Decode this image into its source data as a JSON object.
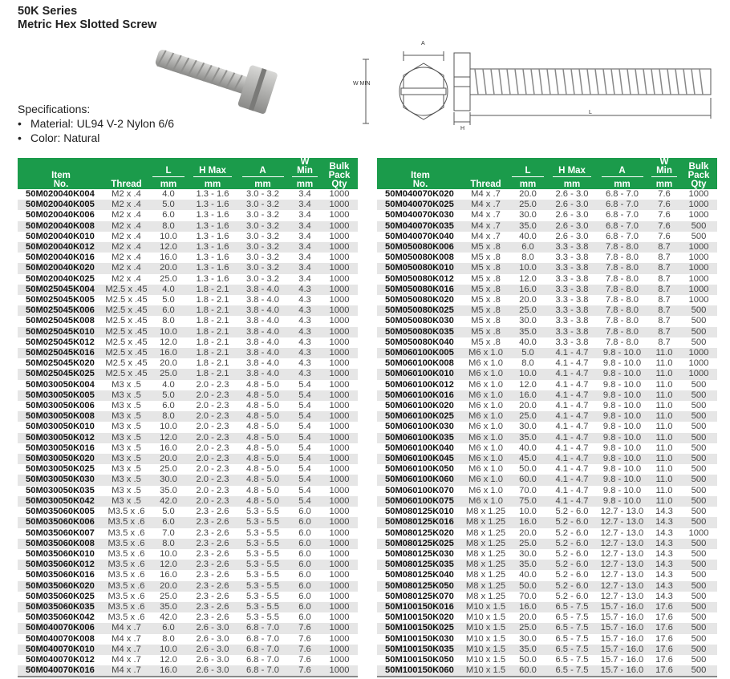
{
  "header": {
    "series": "50K Series",
    "product": "Metric Hex Slotted Screw"
  },
  "specs": {
    "heading": "Specifications:",
    "items": [
      "Material: UL94 V-2 Nylon 6/6",
      "Color: Natural"
    ]
  },
  "diagram": {
    "labels": {
      "a": "A",
      "w": "W MIN",
      "h": "H",
      "l": "L"
    }
  },
  "columns": {
    "item": [
      "Item",
      "No."
    ],
    "thread": "Thread",
    "l": "L",
    "h": "H Max",
    "a": "A",
    "w": "W Min",
    "unit": "mm",
    "qty": [
      "Bulk",
      "Pack",
      "Qty"
    ]
  },
  "colors": {
    "header_green": "#1b9b4b",
    "row_alt": "#e6e6e6"
  },
  "tables": [
    [
      [
        "50M020040K004",
        "M2 x .4",
        "4.0",
        "1.3 - 1.6",
        "3.0 - 3.2",
        "3.4",
        "1000"
      ],
      [
        "50M020040K005",
        "M2 x .4",
        "5.0",
        "1.3 - 1.6",
        "3.0 - 3.2",
        "3.4",
        "1000"
      ],
      [
        "50M020040K006",
        "M2 x .4",
        "6.0",
        "1.3 - 1.6",
        "3.0 - 3.2",
        "3.4",
        "1000"
      ],
      [
        "50M020040K008",
        "M2 x .4",
        "8.0",
        "1.3 - 1.6",
        "3.0 - 3.2",
        "3.4",
        "1000"
      ],
      [
        "50M020040K010",
        "M2 x .4",
        "10.0",
        "1.3 - 1.6",
        "3.0 - 3.2",
        "3.4",
        "1000"
      ],
      [
        "50M020040K012",
        "M2 x .4",
        "12.0",
        "1.3 - 1.6",
        "3.0 - 3.2",
        "3.4",
        "1000"
      ],
      [
        "50M020040K016",
        "M2 x .4",
        "16.0",
        "1.3 - 1.6",
        "3.0 - 3.2",
        "3.4",
        "1000"
      ],
      [
        "50M020040K020",
        "M2 x .4",
        "20.0",
        "1.3 - 1.6",
        "3.0 - 3.2",
        "3.4",
        "1000"
      ],
      [
        "50M020040K025",
        "M2 x .4",
        "25.0",
        "1.3 - 1.6",
        "3.0 - 3.2",
        "3.4",
        "1000"
      ],
      [
        "50M025045K004",
        "M2.5 x .45",
        "4.0",
        "1.8 - 2.1",
        "3.8 - 4.0",
        "4.3",
        "1000"
      ],
      [
        "50M025045K005",
        "M2.5 x .45",
        "5.0",
        "1.8 - 2.1",
        "3.8 - 4.0",
        "4.3",
        "1000"
      ],
      [
        "50M025045K006",
        "M2.5 x .45",
        "6.0",
        "1.8 - 2.1",
        "3.8 - 4.0",
        "4.3",
        "1000"
      ],
      [
        "50M025045K008",
        "M2.5 x .45",
        "8.0",
        "1.8 - 2.1",
        "3.8 - 4.0",
        "4.3",
        "1000"
      ],
      [
        "50M025045K010",
        "M2.5 x .45",
        "10.0",
        "1.8 - 2.1",
        "3.8 - 4.0",
        "4.3",
        "1000"
      ],
      [
        "50M025045K012",
        "M2.5 x .45",
        "12.0",
        "1.8 - 2.1",
        "3.8 - 4.0",
        "4.3",
        "1000"
      ],
      [
        "50M025045K016",
        "M2.5 x .45",
        "16.0",
        "1.8 - 2.1",
        "3.8 - 4.0",
        "4.3",
        "1000"
      ],
      [
        "50M025045K020",
        "M2.5 x .45",
        "20.0",
        "1.8 - 2.1",
        "3.8 - 4.0",
        "4.3",
        "1000"
      ],
      [
        "50M025045K025",
        "M2.5 x .45",
        "25.0",
        "1.8 - 2.1",
        "3.8 - 4.0",
        "4.3",
        "1000"
      ],
      [
        "50M030050K004",
        "M3 x .5",
        "4.0",
        "2.0 - 2.3",
        "4.8 - 5.0",
        "5.4",
        "1000"
      ],
      [
        "50M030050K005",
        "M3 x .5",
        "5.0",
        "2.0 - 2.3",
        "4.8 - 5.0",
        "5.4",
        "1000"
      ],
      [
        "50M030050K006",
        "M3 x .5",
        "6.0",
        "2.0 - 2.3",
        "4.8 - 5.0",
        "5.4",
        "1000"
      ],
      [
        "50M030050K008",
        "M3 x .5",
        "8.0",
        "2.0 - 2.3",
        "4.8 - 5.0",
        "5.4",
        "1000"
      ],
      [
        "50M030050K010",
        "M3 x .5",
        "10.0",
        "2.0 - 2.3",
        "4.8 - 5.0",
        "5.4",
        "1000"
      ],
      [
        "50M030050K012",
        "M3 x .5",
        "12.0",
        "2.0 - 2.3",
        "4.8 - 5.0",
        "5.4",
        "1000"
      ],
      [
        "50M030050K016",
        "M3 x .5",
        "16.0",
        "2.0 - 2.3",
        "4.8 - 5.0",
        "5.4",
        "1000"
      ],
      [
        "50M030050K020",
        "M3 x .5",
        "20.0",
        "2.0 - 2.3",
        "4.8 - 5.0",
        "5.4",
        "1000"
      ],
      [
        "50M030050K025",
        "M3 x .5",
        "25.0",
        "2.0 - 2.3",
        "4.8 - 5.0",
        "5.4",
        "1000"
      ],
      [
        "50M030050K030",
        "M3 x .5",
        "30.0",
        "2.0 - 2.3",
        "4.8 - 5.0",
        "5.4",
        "1000"
      ],
      [
        "50M030050K035",
        "M3 x .5",
        "35.0",
        "2.0 - 2.3",
        "4.8 - 5.0",
        "5.4",
        "1000"
      ],
      [
        "50M030050K042",
        "M3 x .5",
        "42.0",
        "2.0 - 2.3",
        "4.8 - 5.0",
        "5.4",
        "1000"
      ],
      [
        "50M035060K005",
        "M3.5 x .6",
        "5.0",
        "2.3 - 2.6",
        "5.3 - 5.5",
        "6.0",
        "1000"
      ],
      [
        "50M035060K006",
        "M3.5 x .6",
        "6.0",
        "2.3 - 2.6",
        "5.3 - 5.5",
        "6.0",
        "1000"
      ],
      [
        "50M035060K007",
        "M3.5 x .6",
        "7.0",
        "2.3 - 2.6",
        "5.3 - 5.5",
        "6.0",
        "1000"
      ],
      [
        "50M035060K008",
        "M3.5 x .6",
        "8.0",
        "2.3 - 2.6",
        "5.3 - 5.5",
        "6.0",
        "1000"
      ],
      [
        "50M035060K010",
        "M3.5 x .6",
        "10.0",
        "2.3 - 2.6",
        "5.3 - 5.5",
        "6.0",
        "1000"
      ],
      [
        "50M035060K012",
        "M3.5 x .6",
        "12.0",
        "2.3 - 2.6",
        "5.3 - 5.5",
        "6.0",
        "1000"
      ],
      [
        "50M035060K016",
        "M3.5 x .6",
        "16.0",
        "2.3 - 2.6",
        "5.3 - 5.5",
        "6.0",
        "1000"
      ],
      [
        "50M035060K020",
        "M3.5 x .6",
        "20.0",
        "2.3 - 2.6",
        "5.3 - 5.5",
        "6.0",
        "1000"
      ],
      [
        "50M035060K025",
        "M3.5 x .6",
        "25.0",
        "2.3 - 2.6",
        "5.3 - 5.5",
        "6.0",
        "1000"
      ],
      [
        "50M035060K035",
        "M3.5 x .6",
        "35.0",
        "2.3 - 2.6",
        "5.3 - 5.5",
        "6.0",
        "1000"
      ],
      [
        "50M035060K042",
        "M3.5 x .6",
        "42.0",
        "2.3 - 2.6",
        "5.3 - 5.5",
        "6.0",
        "1000"
      ],
      [
        "50M040070K006",
        "M4 x .7",
        "6.0",
        "2.6 - 3.0",
        "6.8 - 7.0",
        "7.6",
        "1000"
      ],
      [
        "50M040070K008",
        "M4 x .7",
        "8.0",
        "2.6 - 3.0",
        "6.8 - 7.0",
        "7.6",
        "1000"
      ],
      [
        "50M040070K010",
        "M4 x .7",
        "10.0",
        "2.6 - 3.0",
        "6.8 - 7.0",
        "7.6",
        "1000"
      ],
      [
        "50M040070K012",
        "M4 x .7",
        "12.0",
        "2.6 - 3.0",
        "6.8 - 7.0",
        "7.6",
        "1000"
      ],
      [
        "50M040070K016",
        "M4 x .7",
        "16.0",
        "2.6 - 3.0",
        "6.8 - 7.0",
        "7.6",
        "1000"
      ]
    ],
    [
      [
        "50M040070K020",
        "M4 x .7",
        "20.0",
        "2.6 - 3.0",
        "6.8 - 7.0",
        "7.6",
        "1000"
      ],
      [
        "50M040070K025",
        "M4 x .7",
        "25.0",
        "2.6 - 3.0",
        "6.8 - 7.0",
        "7.6",
        "1000"
      ],
      [
        "50M040070K030",
        "M4 x .7",
        "30.0",
        "2.6 - 3.0",
        "6.8 - 7.0",
        "7.6",
        "1000"
      ],
      [
        "50M040070K035",
        "M4 x .7",
        "35.0",
        "2.6 - 3.0",
        "6.8 - 7.0",
        "7.6",
        "500"
      ],
      [
        "50M040070K040",
        "M4 x .7",
        "40.0",
        "2.6 - 3.0",
        "6.8 - 7.0",
        "7.6",
        "500"
      ],
      [
        "50M050080K006",
        "M5 x .8",
        "6.0",
        "3.3 - 3.8",
        "7.8 - 8.0",
        "8.7",
        "1000"
      ],
      [
        "50M050080K008",
        "M5 x .8",
        "8.0",
        "3.3 - 3.8",
        "7.8 - 8.0",
        "8.7",
        "1000"
      ],
      [
        "50M050080K010",
        "M5 x .8",
        "10.0",
        "3.3 - 3.8",
        "7.8 - 8.0",
        "8.7",
        "1000"
      ],
      [
        "50M050080K012",
        "M5 x .8",
        "12.0",
        "3.3 - 3.8",
        "7.8 - 8.0",
        "8.7",
        "1000"
      ],
      [
        "50M050080K016",
        "M5 x .8",
        "16.0",
        "3.3 - 3.8",
        "7.8 - 8.0",
        "8.7",
        "1000"
      ],
      [
        "50M050080K020",
        "M5 x .8",
        "20.0",
        "3.3 - 3.8",
        "7.8 - 8.0",
        "8.7",
        "1000"
      ],
      [
        "50M050080K025",
        "M5 x .8",
        "25.0",
        "3.3 - 3.8",
        "7.8 - 8.0",
        "8.7",
        "500"
      ],
      [
        "50M050080K030",
        "M5 x .8",
        "30.0",
        "3.3 - 3.8",
        "7.8 - 8.0",
        "8.7",
        "500"
      ],
      [
        "50M050080K035",
        "M5 x .8",
        "35.0",
        "3.3 - 3.8",
        "7.8 - 8.0",
        "8.7",
        "500"
      ],
      [
        "50M050080K040",
        "M5 x .8",
        "40.0",
        "3.3 - 3.8",
        "7.8 - 8.0",
        "8.7",
        "500"
      ],
      [
        "50M060100K005",
        "M6 x 1.0",
        "5.0",
        "4.1 - 4.7",
        "9.8 - 10.0",
        "11.0",
        "1000"
      ],
      [
        "50M060100K008",
        "M6 x 1.0",
        "8.0",
        "4.1 - 4.7",
        "9.8 - 10.0",
        "11.0",
        "1000"
      ],
      [
        "50M060100K010",
        "M6 x 1.0",
        "10.0",
        "4.1 - 4.7",
        "9.8 - 10.0",
        "11.0",
        "1000"
      ],
      [
        "50M060100K012",
        "M6 x 1.0",
        "12.0",
        "4.1 - 4.7",
        "9.8 - 10.0",
        "11.0",
        "500"
      ],
      [
        "50M060100K016",
        "M6 x 1.0",
        "16.0",
        "4.1 - 4.7",
        "9.8 - 10.0",
        "11.0",
        "500"
      ],
      [
        "50M060100K020",
        "M6 x 1.0",
        "20.0",
        "4.1 - 4.7",
        "9.8 - 10.0",
        "11.0",
        "500"
      ],
      [
        "50M060100K025",
        "M6 x 1.0",
        "25.0",
        "4.1 - 4.7",
        "9.8 - 10.0",
        "11.0",
        "500"
      ],
      [
        "50M060100K030",
        "M6 x 1.0",
        "30.0",
        "4.1 - 4.7",
        "9.8 - 10.0",
        "11.0",
        "500"
      ],
      [
        "50M060100K035",
        "M6 x 1.0",
        "35.0",
        "4.1 - 4.7",
        "9.8 - 10.0",
        "11.0",
        "500"
      ],
      [
        "50M060100K040",
        "M6 x 1.0",
        "40.0",
        "4.1 - 4.7",
        "9.8 - 10.0",
        "11.0",
        "500"
      ],
      [
        "50M060100K045",
        "M6 x 1.0",
        "45.0",
        "4.1 - 4.7",
        "9.8 - 10.0",
        "11.0",
        "500"
      ],
      [
        "50M060100K050",
        "M6 x 1.0",
        "50.0",
        "4.1 - 4.7",
        "9.8 - 10.0",
        "11.0",
        "500"
      ],
      [
        "50M060100K060",
        "M6 x 1.0",
        "60.0",
        "4.1 - 4.7",
        "9.8 - 10.0",
        "11.0",
        "500"
      ],
      [
        "50M060100K070",
        "M6 x 1.0",
        "70.0",
        "4.1 - 4.7",
        "9.8 - 10.0",
        "11.0",
        "500"
      ],
      [
        "50M060100K075",
        "M6 x 1.0",
        "75.0",
        "4.1 - 4.7",
        "9.8 - 10.0",
        "11.0",
        "500"
      ],
      [
        "50M080125K010",
        "M8 x 1.25",
        "10.0",
        "5.2 - 6.0",
        "12.7 - 13.0",
        "14.3",
        "500"
      ],
      [
        "50M080125K016",
        "M8 x 1.25",
        "16.0",
        "5.2 - 6.0",
        "12.7 - 13.0",
        "14.3",
        "500"
      ],
      [
        "50M080125K020",
        "M8 x 1.25",
        "20.0",
        "5.2 - 6.0",
        "12.7 - 13.0",
        "14.3",
        "1000"
      ],
      [
        "50M080125K025",
        "M8 x 1.25",
        "25.0",
        "5.2 - 6.0",
        "12.7 - 13.0",
        "14.3",
        "500"
      ],
      [
        "50M080125K030",
        "M8 x 1.25",
        "30.0",
        "5.2 - 6.0",
        "12.7 - 13.0",
        "14.3",
        "500"
      ],
      [
        "50M080125K035",
        "M8 x 1.25",
        "35.0",
        "5.2 - 6.0",
        "12.7 - 13.0",
        "14.3",
        "500"
      ],
      [
        "50M080125K040",
        "M8 x 1.25",
        "40.0",
        "5.2 - 6.0",
        "12.7 - 13.0",
        "14.3",
        "500"
      ],
      [
        "50M080125K050",
        "M8 x 1.25",
        "50.0",
        "5.2 - 6.0",
        "12.7 - 13.0",
        "14.3",
        "500"
      ],
      [
        "50M080125K070",
        "M8 x 1.25",
        "70.0",
        "5.2 - 6.0",
        "12.7 - 13.0",
        "14.3",
        "500"
      ],
      [
        "50M100150K016",
        "M10 x 1.5",
        "16.0",
        "6.5 - 7.5",
        "15.7 - 16.0",
        "17.6",
        "500"
      ],
      [
        "50M100150K020",
        "M10 x 1.5",
        "20.0",
        "6.5 - 7.5",
        "15.7 - 16.0",
        "17.6",
        "500"
      ],
      [
        "50M100150K025",
        "M10 x 1.5",
        "25.0",
        "6.5 - 7.5",
        "15.7 - 16.0",
        "17.6",
        "500"
      ],
      [
        "50M100150K030",
        "M10 x 1.5",
        "30.0",
        "6.5 - 7.5",
        "15.7 - 16.0",
        "17.6",
        "500"
      ],
      [
        "50M100150K035",
        "M10 x 1.5",
        "35.0",
        "6.5 - 7.5",
        "15.7 - 16.0",
        "17.6",
        "500"
      ],
      [
        "50M100150K050",
        "M10 x 1.5",
        "50.0",
        "6.5 - 7.5",
        "15.7 - 16.0",
        "17.6",
        "500"
      ],
      [
        "50M100150K060",
        "M10 x 1.5",
        "60.0",
        "6.5 - 7.5",
        "15.7 - 16.0",
        "17.6",
        "500"
      ]
    ]
  ]
}
